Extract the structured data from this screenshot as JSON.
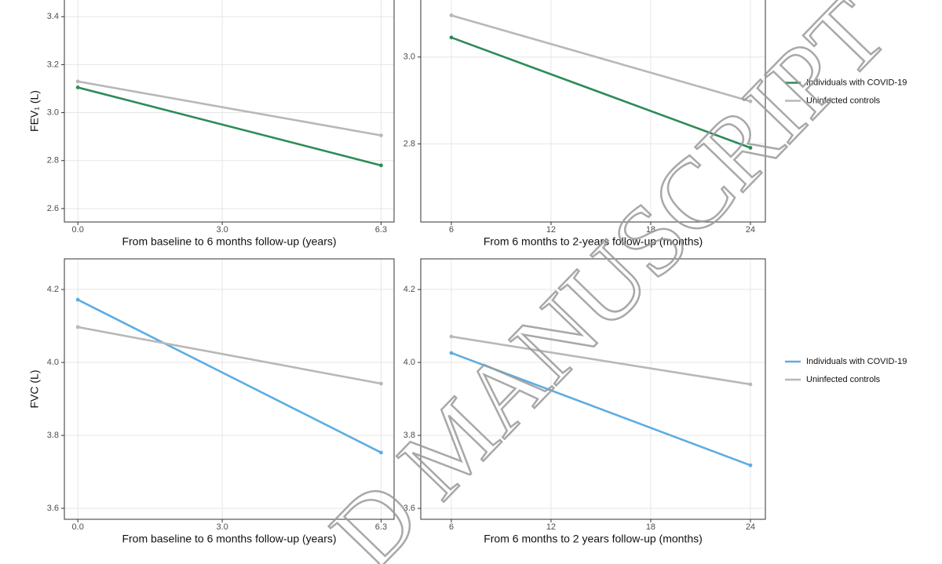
{
  "watermark": "D MANUSCRIPT",
  "chart_data": [
    {
      "type": "line",
      "y_label": "FEV₁ (L)",
      "x_label": "From baseline to 6 months follow-up (years)",
      "x": [
        0,
        6.3
      ],
      "xlim": [
        -0.28,
        6.57
      ],
      "xticks": [
        {
          "value": 0,
          "label": "0.0"
        },
        {
          "value": 3,
          "label": "3.0"
        },
        6.3
      ],
      "ylim": [
        2.544,
        3.476
      ],
      "yticks": [
        2.6,
        2.8,
        {
          "value": 3,
          "label": "3.0"
        },
        3.2,
        3.4
      ],
      "grid": true,
      "series": [
        {
          "name": "Individuals with COVID-19",
          "color": "#2e8b57",
          "values": [
            3.105,
            2.78
          ]
        },
        {
          "name": "Uninfected controls",
          "color": "#b8b8b8",
          "values": [
            3.13,
            2.905
          ]
        }
      ]
    },
    {
      "type": "line",
      "x_label": "From 6 months to 2-years follow-up (months)",
      "x": [
        6,
        24
      ],
      "xlim": [
        4.16,
        24.9
      ],
      "xticks": [
        6,
        12,
        18,
        24
      ],
      "ylim": [
        2.62,
        3.135
      ],
      "yticks": [
        2.8,
        {
          "value": 3,
          "label": "3.0"
        }
      ],
      "grid": true,
      "legend": "right",
      "series": [
        {
          "name": "Individuals with COVID-19",
          "color": "#2e8b57",
          "values": [
            3.045,
            2.791
          ]
        },
        {
          "name": "Uninfected controls",
          "color": "#b8b8b8",
          "values": [
            3.096,
            2.898
          ]
        }
      ]
    },
    {
      "type": "line",
      "y_label": "FVC (L)",
      "x_label": "From baseline to 6 months follow-up (years)",
      "x": [
        0,
        6.3
      ],
      "xlim": [
        -0.28,
        6.57
      ],
      "xticks": [
        {
          "value": 0,
          "label": "0.0"
        },
        {
          "value": 3,
          "label": "3.0"
        },
        6.3
      ],
      "ylim": [
        3.57,
        4.284
      ],
      "yticks": [
        3.6,
        3.8,
        {
          "value": 4,
          "label": "4.0"
        },
        4.2
      ],
      "grid": true,
      "series": [
        {
          "name": "Individuals with COVID-19",
          "color": "#5dade2",
          "values": [
            4.172,
            3.753
          ]
        },
        {
          "name": "Uninfected controls",
          "color": "#b8b8b8",
          "values": [
            4.097,
            3.942
          ]
        }
      ]
    },
    {
      "type": "line",
      "x_label": "From 6 months to 2 years follow-up (months)",
      "x": [
        6,
        24
      ],
      "xlim": [
        4.16,
        24.9
      ],
      "xticks": [
        6,
        12,
        18,
        24
      ],
      "ylim": [
        3.57,
        4.284
      ],
      "yticks": [
        3.6,
        3.8,
        {
          "value": 4,
          "label": "4.0"
        },
        4.2
      ],
      "grid": true,
      "legend": "right",
      "series": [
        {
          "name": "Individuals with COVID-19",
          "color": "#5dade2",
          "values": [
            4.026,
            3.718
          ]
        },
        {
          "name": "Uninfected controls",
          "color": "#b8b8b8",
          "values": [
            4.071,
            3.94
          ]
        }
      ]
    }
  ]
}
